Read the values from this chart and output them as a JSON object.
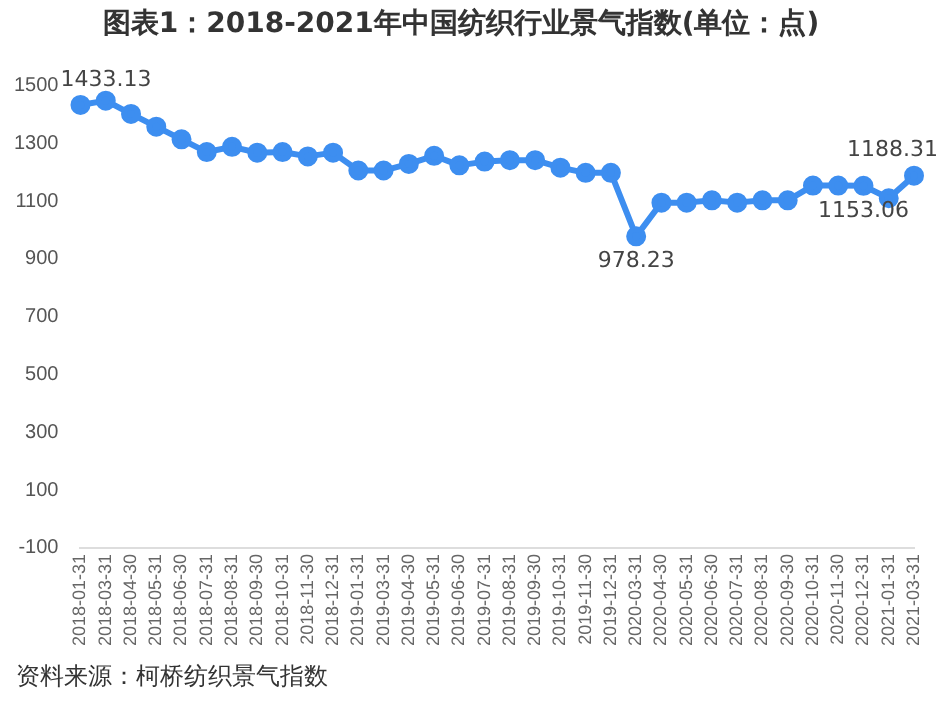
{
  "chart_data": {
    "type": "line",
    "title": "图表1：2018-2021年中国纺织行业景气指数(单位：点)",
    "categories": [
      "2018-01-31",
      "2018-03-31",
      "2018-04-30",
      "2018-05-31",
      "2018-06-30",
      "2018-07-31",
      "2018-08-31",
      "2018-09-30",
      "2018-10-31",
      "2018-11-30",
      "2018-12-31",
      "2019-01-31",
      "2019-03-31",
      "2019-04-30",
      "2019-05-31",
      "2019-06-30",
      "2019-07-31",
      "2019-08-31",
      "2019-09-30",
      "2019-10-31",
      "2019-11-30",
      "2019-12-31",
      "2020-03-31",
      "2020-04-30",
      "2020-05-31",
      "2020-06-30",
      "2020-07-31",
      "2020-08-31",
      "2020-09-30",
      "2020-10-31",
      "2020-11-30",
      "2020-12-31",
      "2021-01-31",
      "2021-03-31"
    ],
    "series": [
      {
        "color": "#3d8ef0",
        "values": [
          1433.13,
          1448,
          1402,
          1358,
          1314,
          1270,
          1288,
          1268,
          1270,
          1255,
          1268,
          1206,
          1206,
          1229,
          1257,
          1224,
          1237,
          1242,
          1242,
          1216,
          1198,
          1198,
          978.23,
          1095,
          1095,
          1103,
          1095,
          1103,
          1103,
          1154,
          1154,
          1153.06,
          1110,
          1188.31
        ],
        "value_labels": [
          "1433.13",
          null,
          null,
          null,
          null,
          null,
          null,
          null,
          null,
          null,
          null,
          null,
          null,
          null,
          null,
          null,
          null,
          null,
          null,
          null,
          null,
          null,
          "978.23",
          null,
          null,
          null,
          null,
          null,
          null,
          null,
          null,
          "1153.06",
          null,
          "1188.31"
        ]
      }
    ],
    "ylim": [
      -100,
      1500
    ],
    "yticks": [
      -100,
      100,
      300,
      500,
      700,
      900,
      1100,
      1300,
      1500
    ],
    "grid": false,
    "legend": false,
    "marker": "circle",
    "line_style": "solid",
    "annotations": [
      "资料来源：柯桥纺织景气指数"
    ]
  }
}
